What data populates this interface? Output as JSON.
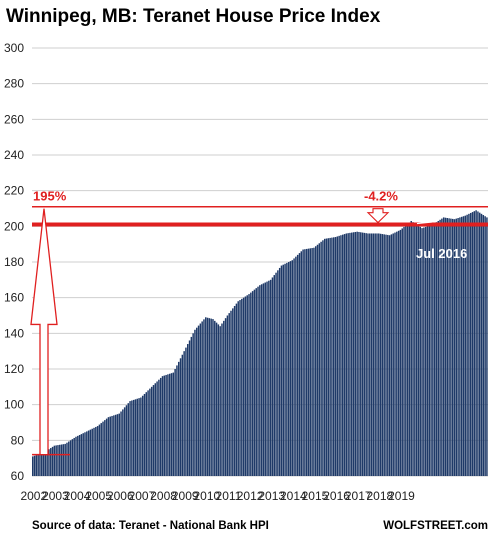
{
  "chart_data": {
    "type": "bar",
    "title": "Winnipeg, MB: Teranet House Price Index",
    "yticks": [
      "60",
      "80",
      "100",
      "120",
      "140",
      "160",
      "180",
      "200",
      "220",
      "240",
      "260",
      "280",
      "300"
    ],
    "ylim": [
      60,
      300
    ],
    "xticks": [
      "2002",
      "2003",
      "2004",
      "2005",
      "2006",
      "2007",
      "2008",
      "2009",
      "2010",
      "2011",
      "2012",
      "2013",
      "2014",
      "2015",
      "2016",
      "2017",
      "2018",
      "2019"
    ],
    "bar_color": "#1f3a68",
    "grid": "horizontal",
    "anchors": [
      [
        0,
        71
      ],
      [
        6,
        73
      ],
      [
        12,
        77
      ],
      [
        18,
        78
      ],
      [
        24,
        82
      ],
      [
        30,
        85
      ],
      [
        36,
        88
      ],
      [
        42,
        93
      ],
      [
        48,
        95
      ],
      [
        54,
        102
      ],
      [
        60,
        104
      ],
      [
        66,
        110
      ],
      [
        72,
        116
      ],
      [
        78,
        118
      ],
      [
        84,
        130
      ],
      [
        90,
        142
      ],
      [
        96,
        149
      ],
      [
        100,
        148
      ],
      [
        104,
        144
      ],
      [
        108,
        150
      ],
      [
        114,
        158
      ],
      [
        120,
        162
      ],
      [
        126,
        167
      ],
      [
        132,
        170
      ],
      [
        138,
        178
      ],
      [
        144,
        181
      ],
      [
        150,
        187
      ],
      [
        156,
        188
      ],
      [
        162,
        193
      ],
      [
        168,
        194
      ],
      [
        174,
        196
      ],
      [
        180,
        197
      ],
      [
        186,
        196
      ],
      [
        192,
        196
      ],
      [
        198,
        195
      ],
      [
        204,
        198
      ],
      [
        210,
        203
      ],
      [
        216,
        199
      ],
      [
        222,
        201
      ],
      [
        228,
        205
      ],
      [
        234,
        204
      ],
      [
        240,
        206
      ],
      [
        246,
        209
      ],
      [
        252,
        205
      ]
    ],
    "annotations": {
      "left_label": "195%",
      "top_label": "-4.2%",
      "peak_label": "Jul 2016",
      "ref_line_value": 201,
      "peak_value": 211,
      "base_value": 72
    },
    "source": "Source of data: Teranet - National Bank HPI",
    "credit": "WOLFSTREET.com"
  }
}
